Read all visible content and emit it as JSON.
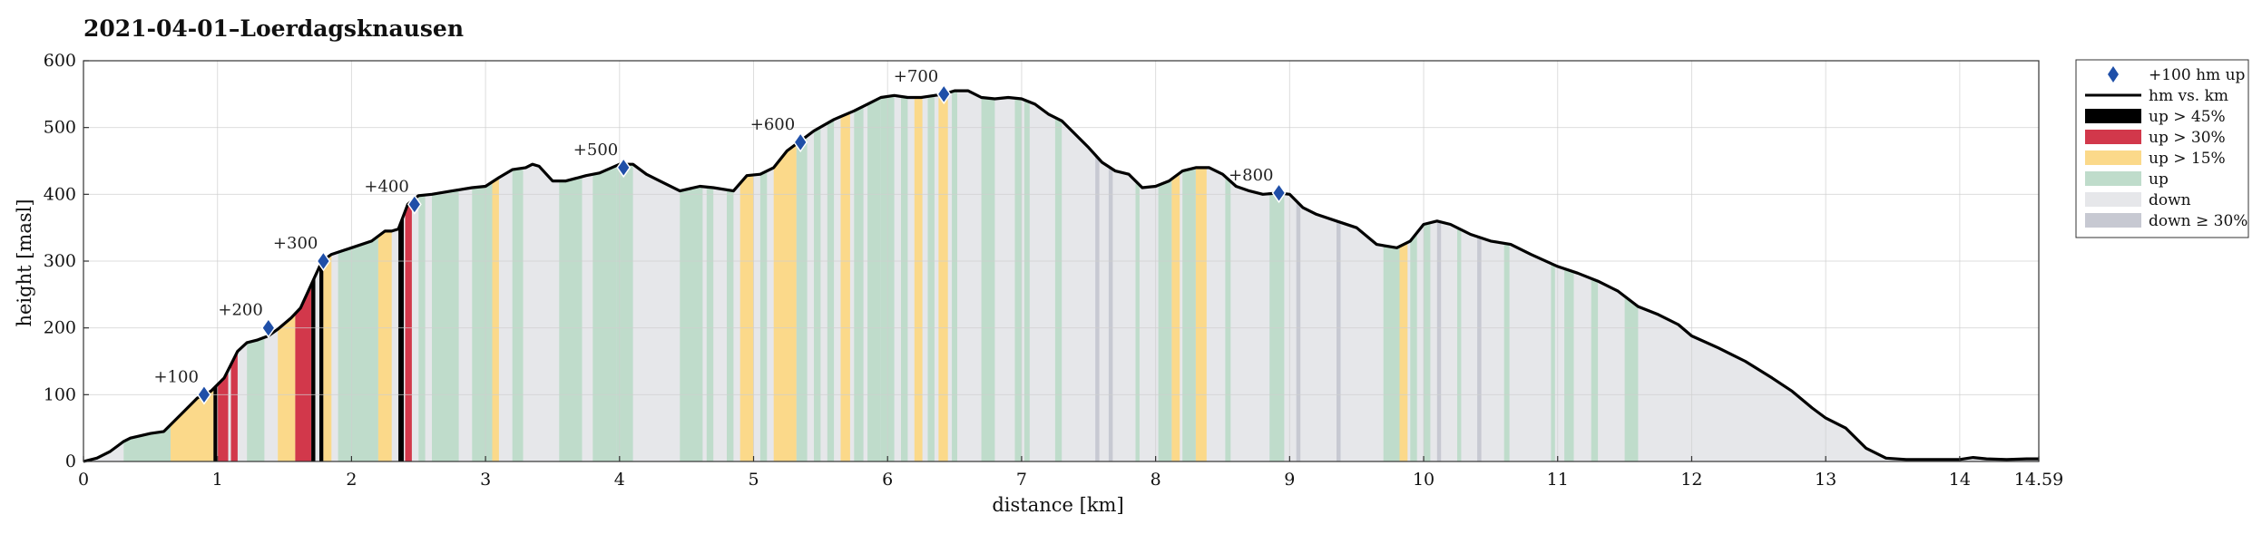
{
  "chart_data": {
    "type": "area",
    "title": "2021-04-01–Loerdagsknausen",
    "xlabel": "distance [km]",
    "ylabel": "height [masl]",
    "xlim": [
      0,
      14.59
    ],
    "ylim": [
      0,
      600
    ],
    "x_ticks": [
      0,
      1,
      2,
      3,
      4,
      5,
      6,
      7,
      8,
      9,
      10,
      11,
      12,
      13,
      14,
      14.59
    ],
    "x_tick_labels": [
      "0",
      "1",
      "2",
      "3",
      "4",
      "5",
      "6",
      "7",
      "8",
      "9",
      "10",
      "11",
      "12",
      "13",
      "14",
      "14.59"
    ],
    "y_ticks": [
      0,
      100,
      200,
      300,
      400,
      500,
      600
    ],
    "grid": true,
    "legend_position": "outside-right",
    "legend": [
      {
        "key": "marker",
        "label": "+100 hm up"
      },
      {
        "key": "line",
        "label": "hm vs. km"
      },
      {
        "key": "up45",
        "label": "up > 45%"
      },
      {
        "key": "up30",
        "label": "up > 30%"
      },
      {
        "key": "up15",
        "label": "up > 15%"
      },
      {
        "key": "up",
        "label": "up"
      },
      {
        "key": "down",
        "label": "down"
      },
      {
        "key": "down30",
        "label": "down ≥ 30%"
      }
    ],
    "colors": {
      "line": "#000000",
      "marker": "#1f4fa8",
      "up45": "#000000",
      "up30": "#d2384b",
      "up15": "#fbd98a",
      "up": "#bfdccb",
      "down": "#e6e7ea",
      "down30": "#c7c9d2"
    },
    "profile": {
      "x": [
        0,
        0.1,
        0.2,
        0.3,
        0.35,
        0.5,
        0.6,
        0.65,
        0.75,
        0.85,
        0.95,
        1.05,
        1.15,
        1.22,
        1.3,
        1.38,
        1.45,
        1.55,
        1.62,
        1.7,
        1.78,
        1.85,
        2.0,
        2.15,
        2.25,
        2.3,
        2.35,
        2.42,
        2.5,
        2.6,
        2.75,
        2.9,
        3.0,
        3.1,
        3.2,
        3.3,
        3.35,
        3.4,
        3.5,
        3.6,
        3.75,
        3.85,
        4.0,
        4.1,
        4.2,
        4.3,
        4.45,
        4.6,
        4.7,
        4.85,
        4.95,
        5.05,
        5.15,
        5.25,
        5.35,
        5.45,
        5.6,
        5.75,
        5.85,
        5.95,
        6.05,
        6.15,
        6.25,
        6.35,
        6.42,
        6.5,
        6.6,
        6.7,
        6.8,
        6.9,
        7.0,
        7.1,
        7.2,
        7.3,
        7.4,
        7.5,
        7.6,
        7.7,
        7.8,
        7.9,
        8.0,
        8.1,
        8.2,
        8.3,
        8.4,
        8.5,
        8.6,
        8.7,
        8.8,
        8.92,
        9.0,
        9.1,
        9.2,
        9.35,
        9.5,
        9.65,
        9.8,
        9.9,
        10.0,
        10.1,
        10.2,
        10.35,
        10.5,
        10.65,
        10.8,
        11.0,
        11.15,
        11.3,
        11.45,
        11.6,
        11.75,
        11.9,
        12.0,
        12.2,
        12.4,
        12.6,
        12.75,
        12.9,
        13.0,
        13.15,
        13.3,
        13.45,
        13.6,
        13.8,
        14.0,
        14.1,
        14.2,
        14.35,
        14.5,
        14.59
      ],
      "y": [
        0,
        5,
        15,
        30,
        35,
        42,
        45,
        55,
        75,
        95,
        105,
        125,
        165,
        178,
        182,
        188,
        198,
        215,
        230,
        265,
        300,
        310,
        320,
        330,
        345,
        345,
        348,
        385,
        398,
        400,
        405,
        410,
        412,
        425,
        437,
        440,
        445,
        442,
        420,
        420,
        428,
        432,
        445,
        445,
        430,
        420,
        405,
        412,
        410,
        405,
        428,
        430,
        440,
        465,
        480,
        495,
        512,
        525,
        535,
        545,
        548,
        545,
        545,
        548,
        550,
        555,
        555,
        545,
        543,
        545,
        543,
        535,
        520,
        510,
        490,
        470,
        448,
        435,
        430,
        410,
        412,
        420,
        435,
        440,
        440,
        430,
        412,
        405,
        400,
        402,
        400,
        380,
        370,
        360,
        350,
        325,
        320,
        330,
        355,
        360,
        355,
        340,
        330,
        325,
        310,
        292,
        282,
        270,
        255,
        232,
        220,
        205,
        188,
        170,
        150,
        125,
        105,
        80,
        65,
        50,
        20,
        5,
        3,
        3,
        3,
        6,
        4,
        3,
        4,
        4
      ]
    },
    "segments": [
      {
        "x0": 0.3,
        "x1": 0.65,
        "cat": "up"
      },
      {
        "x0": 0.65,
        "x1": 0.97,
        "cat": "up15"
      },
      {
        "x0": 0.97,
        "x1": 1.02,
        "cat": "up45"
      },
      {
        "x0": 1.0,
        "x1": 1.08,
        "cat": "up30"
      },
      {
        "x0": 1.1,
        "x1": 1.15,
        "cat": "up30"
      },
      {
        "x0": 1.22,
        "x1": 1.35,
        "cat": "up"
      },
      {
        "x0": 1.45,
        "x1": 1.58,
        "cat": "up15"
      },
      {
        "x0": 1.58,
        "x1": 1.7,
        "cat": "up30"
      },
      {
        "x0": 1.7,
        "x1": 1.73,
        "cat": "up45"
      },
      {
        "x0": 1.76,
        "x1": 1.79,
        "cat": "up45"
      },
      {
        "x0": 1.79,
        "x1": 1.85,
        "cat": "up15"
      },
      {
        "x0": 1.9,
        "x1": 2.2,
        "cat": "up"
      },
      {
        "x0": 2.2,
        "x1": 2.3,
        "cat": "up15"
      },
      {
        "x0": 2.35,
        "x1": 2.39,
        "cat": "up45"
      },
      {
        "x0": 2.4,
        "x1": 2.45,
        "cat": "up30"
      },
      {
        "x0": 2.5,
        "x1": 2.55,
        "cat": "up"
      },
      {
        "x0": 2.6,
        "x1": 2.8,
        "cat": "up"
      },
      {
        "x0": 2.9,
        "x1": 3.05,
        "cat": "up"
      },
      {
        "x0": 3.05,
        "x1": 3.1,
        "cat": "up15"
      },
      {
        "x0": 3.2,
        "x1": 3.28,
        "cat": "up"
      },
      {
        "x0": 3.55,
        "x1": 3.72,
        "cat": "up"
      },
      {
        "x0": 3.8,
        "x1": 3.98,
        "cat": "up"
      },
      {
        "x0": 3.98,
        "x1": 4.1,
        "cat": "up"
      },
      {
        "x0": 4.45,
        "x1": 4.62,
        "cat": "up"
      },
      {
        "x0": 4.65,
        "x1": 4.7,
        "cat": "up"
      },
      {
        "x0": 4.8,
        "x1": 4.85,
        "cat": "up"
      },
      {
        "x0": 4.9,
        "x1": 5.0,
        "cat": "up15"
      },
      {
        "x0": 5.05,
        "x1": 5.1,
        "cat": "up"
      },
      {
        "x0": 5.15,
        "x1": 5.32,
        "cat": "up15"
      },
      {
        "x0": 5.32,
        "x1": 5.4,
        "cat": "up"
      },
      {
        "x0": 5.45,
        "x1": 5.5,
        "cat": "up"
      },
      {
        "x0": 5.55,
        "x1": 5.6,
        "cat": "up"
      },
      {
        "x0": 5.65,
        "x1": 5.72,
        "cat": "up15"
      },
      {
        "x0": 5.75,
        "x1": 5.82,
        "cat": "up"
      },
      {
        "x0": 5.85,
        "x1": 5.95,
        "cat": "up"
      },
      {
        "x0": 5.95,
        "x1": 6.05,
        "cat": "up"
      },
      {
        "x0": 6.1,
        "x1": 6.15,
        "cat": "up"
      },
      {
        "x0": 6.2,
        "x1": 6.26,
        "cat": "up15"
      },
      {
        "x0": 6.3,
        "x1": 6.35,
        "cat": "up"
      },
      {
        "x0": 6.38,
        "x1": 6.45,
        "cat": "up15"
      },
      {
        "x0": 6.48,
        "x1": 6.52,
        "cat": "up"
      },
      {
        "x0": 6.7,
        "x1": 6.8,
        "cat": "up"
      },
      {
        "x0": 6.95,
        "x1": 7.0,
        "cat": "up"
      },
      {
        "x0": 7.02,
        "x1": 7.06,
        "cat": "up"
      },
      {
        "x0": 7.25,
        "x1": 7.3,
        "cat": "up"
      },
      {
        "x0": 7.55,
        "x1": 7.58,
        "cat": "down30"
      },
      {
        "x0": 7.65,
        "x1": 7.68,
        "cat": "down30"
      },
      {
        "x0": 7.85,
        "x1": 7.88,
        "cat": "up"
      },
      {
        "x0": 8.02,
        "x1": 8.12,
        "cat": "up"
      },
      {
        "x0": 8.12,
        "x1": 8.18,
        "cat": "up15"
      },
      {
        "x0": 8.2,
        "x1": 8.3,
        "cat": "up"
      },
      {
        "x0": 8.3,
        "x1": 8.38,
        "cat": "up15"
      },
      {
        "x0": 8.52,
        "x1": 8.56,
        "cat": "up"
      },
      {
        "x0": 8.85,
        "x1": 8.96,
        "cat": "up"
      },
      {
        "x0": 9.05,
        "x1": 9.08,
        "cat": "down30"
      },
      {
        "x0": 9.35,
        "x1": 9.38,
        "cat": "down30"
      },
      {
        "x0": 9.7,
        "x1": 9.82,
        "cat": "up"
      },
      {
        "x0": 9.82,
        "x1": 9.88,
        "cat": "up15"
      },
      {
        "x0": 9.9,
        "x1": 9.95,
        "cat": "up"
      },
      {
        "x0": 10.0,
        "x1": 10.05,
        "cat": "up"
      },
      {
        "x0": 10.1,
        "x1": 10.13,
        "cat": "down30"
      },
      {
        "x0": 10.25,
        "x1": 10.28,
        "cat": "up"
      },
      {
        "x0": 10.4,
        "x1": 10.43,
        "cat": "down30"
      },
      {
        "x0": 10.6,
        "x1": 10.64,
        "cat": "up"
      },
      {
        "x0": 10.95,
        "x1": 10.98,
        "cat": "up"
      },
      {
        "x0": 11.05,
        "x1": 11.12,
        "cat": "up"
      },
      {
        "x0": 11.25,
        "x1": 11.3,
        "cat": "up"
      },
      {
        "x0": 11.5,
        "x1": 11.6,
        "cat": "up"
      }
    ],
    "markers": [
      {
        "x": 0.9,
        "y": 100,
        "label": "+100"
      },
      {
        "x": 1.38,
        "y": 200,
        "label": "+200"
      },
      {
        "x": 1.79,
        "y": 300,
        "label": "+300"
      },
      {
        "x": 2.47,
        "y": 385,
        "label": "+400"
      },
      {
        "x": 4.03,
        "y": 440,
        "label": "+500"
      },
      {
        "x": 5.35,
        "y": 478,
        "label": "+600"
      },
      {
        "x": 6.42,
        "y": 550,
        "label": "+700"
      },
      {
        "x": 8.92,
        "y": 402,
        "label": "+800"
      }
    ]
  }
}
